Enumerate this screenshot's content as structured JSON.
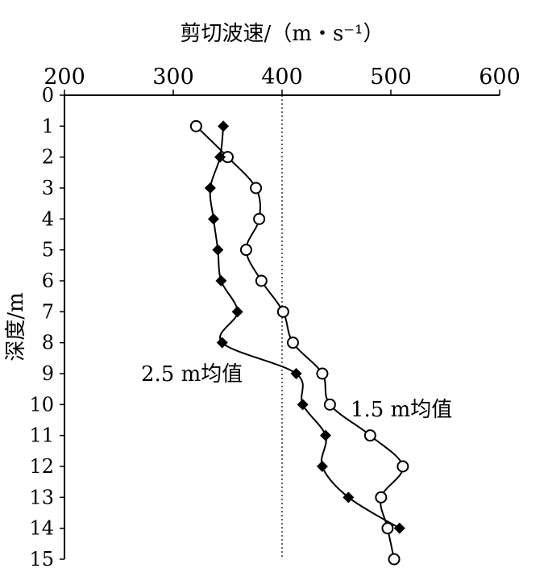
{
  "chart_data": {
    "type": "line",
    "title": "",
    "xlabel": "剪切波速/（m・s⁻¹）",
    "ylabel": "深度/m",
    "xlim": [
      200,
      600
    ],
    "ylim": [
      0,
      15
    ],
    "x_axis_position": "top",
    "y_axis_inverted": true,
    "grid": false,
    "legend": "none",
    "x_ticks": [
      200,
      300,
      400,
      500,
      600
    ],
    "y_ticks": [
      0,
      1,
      2,
      3,
      4,
      5,
      6,
      7,
      8,
      9,
      10,
      11,
      12,
      13,
      14,
      15
    ],
    "reference_line": {
      "x": 400,
      "style": "dotted"
    },
    "series": [
      {
        "name": "1.5 m均值",
        "marker": "open-circle",
        "color": "#000000",
        "points": [
          {
            "depth": 1,
            "vs": 321
          },
          {
            "depth": 2,
            "vs": 350
          },
          {
            "depth": 3,
            "vs": 376
          },
          {
            "depth": 4,
            "vs": 379
          },
          {
            "depth": 5,
            "vs": 367
          },
          {
            "depth": 6,
            "vs": 381
          },
          {
            "depth": 7,
            "vs": 401
          },
          {
            "depth": 8,
            "vs": 410
          },
          {
            "depth": 9,
            "vs": 437
          },
          {
            "depth": 10,
            "vs": 444
          },
          {
            "depth": 11,
            "vs": 481
          },
          {
            "depth": 12,
            "vs": 511
          },
          {
            "depth": 13,
            "vs": 491
          },
          {
            "depth": 14,
            "vs": 497
          },
          {
            "depth": 15,
            "vs": 503
          }
        ]
      },
      {
        "name": "2.5 m均值",
        "marker": "filled-diamond",
        "color": "#000000",
        "points": [
          {
            "depth": 1,
            "vs": 346
          },
          {
            "depth": 2,
            "vs": 343
          },
          {
            "depth": 3,
            "vs": 334
          },
          {
            "depth": 4,
            "vs": 337
          },
          {
            "depth": 5,
            "vs": 341
          },
          {
            "depth": 6,
            "vs": 344
          },
          {
            "depth": 7,
            "vs": 359
          },
          {
            "depth": 8,
            "vs": 345
          },
          {
            "depth": 9,
            "vs": 413
          },
          {
            "depth": 10,
            "vs": 419
          },
          {
            "depth": 11,
            "vs": 440
          },
          {
            "depth": 12,
            "vs": 437
          },
          {
            "depth": 13,
            "vs": 461
          },
          {
            "depth": 14,
            "vs": 508
          }
        ]
      }
    ]
  }
}
